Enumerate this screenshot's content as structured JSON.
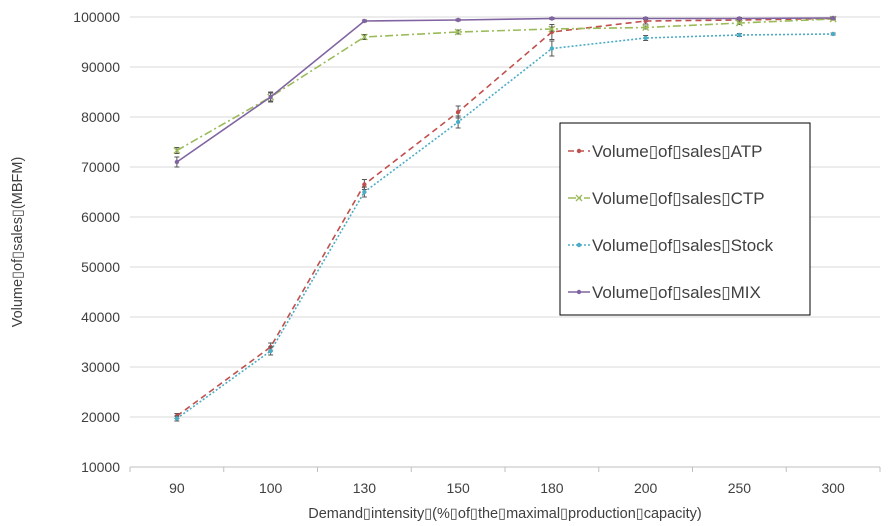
{
  "chart_data": {
    "type": "line",
    "title": "",
    "xlabel": "Demand▯intensity▯(%▯of▯the▯maximal▯production▯capacity)",
    "ylabel": "Volume▯of▯sales▯(MBFM)",
    "categories": [
      "90",
      "100",
      "130",
      "150",
      "180",
      "200",
      "250",
      "300"
    ],
    "ylim": [
      10000,
      100000
    ],
    "yticks": [
      "10000",
      "20000",
      "30000",
      "40000",
      "50000",
      "60000",
      "70000",
      "80000",
      "90000",
      "100000"
    ],
    "legend_position": "right",
    "error_bars": true,
    "series": [
      {
        "name": "Volume▯of▯sales▯ATP",
        "color": "#c0504d",
        "dash": "dashed",
        "marker": "dot",
        "values": [
          20200,
          34000,
          66500,
          81000,
          97000,
          99200,
          99400,
          99700
        ],
        "errors": [
          500,
          800,
          1000,
          1200,
          1500,
          600,
          300,
          200
        ]
      },
      {
        "name": "Volume▯of▯sales▯CTP",
        "color": "#9bbb59",
        "dash": "dashdot",
        "marker": "x",
        "values": [
          73300,
          84000,
          96000,
          97000,
          97600,
          97900,
          98800,
          99600
        ],
        "errors": [
          600,
          800,
          500,
          400,
          400,
          300,
          300,
          200
        ]
      },
      {
        "name": "Volume▯of▯sales▯Stock",
        "color": "#4bacc6",
        "dash": "dotted",
        "marker": "dot",
        "values": [
          19700,
          33200,
          65000,
          79000,
          93700,
          95800,
          96400,
          96600
        ],
        "errors": [
          500,
          800,
          1000,
          1200,
          1500,
          500,
          300,
          200
        ]
      },
      {
        "name": "Volume▯of▯sales▯MIX",
        "color": "#8064a2",
        "dash": "solid",
        "marker": "dot",
        "values": [
          71000,
          84000,
          99200,
          99400,
          99700,
          99700,
          99700,
          99800
        ],
        "errors": [
          1000,
          1000,
          200,
          200,
          200,
          200,
          200,
          200
        ]
      }
    ]
  }
}
